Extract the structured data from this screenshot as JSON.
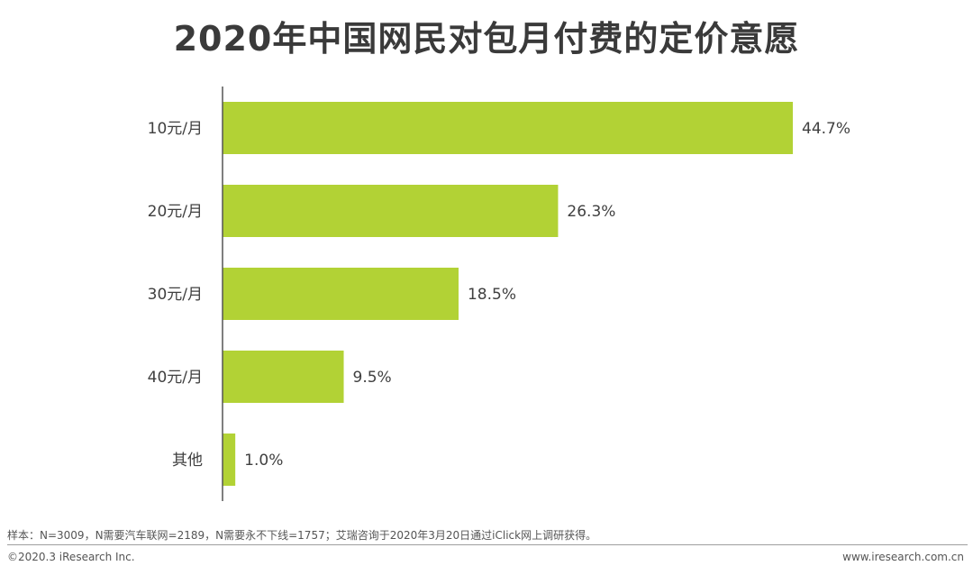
{
  "chart_data": {
    "type": "bar",
    "orientation": "horizontal",
    "title": "2020年中国网民对包月付费的定价意愿",
    "categories": [
      "10元/月",
      "20元/月",
      "30元/月",
      "40元/月",
      "其他"
    ],
    "values": [
      44.7,
      26.3,
      18.5,
      9.5,
      1.0
    ],
    "value_labels": [
      "44.7%",
      "26.3%",
      "18.5%",
      "9.5%",
      "1.0%"
    ],
    "unit": "%",
    "xlim": [
      0,
      50
    ],
    "grid": false,
    "legend": "none",
    "bar_color": "#b2d235"
  },
  "footer": {
    "note": "样本：N=3009，N需要汽车联网=2189，N需要永不下线=1757；艾瑞咨询于2020年3月20日通过iClick网上调研获得。",
    "copyright": "©2020.3 iResearch Inc.",
    "website": "www.iresearch.com.cn"
  }
}
